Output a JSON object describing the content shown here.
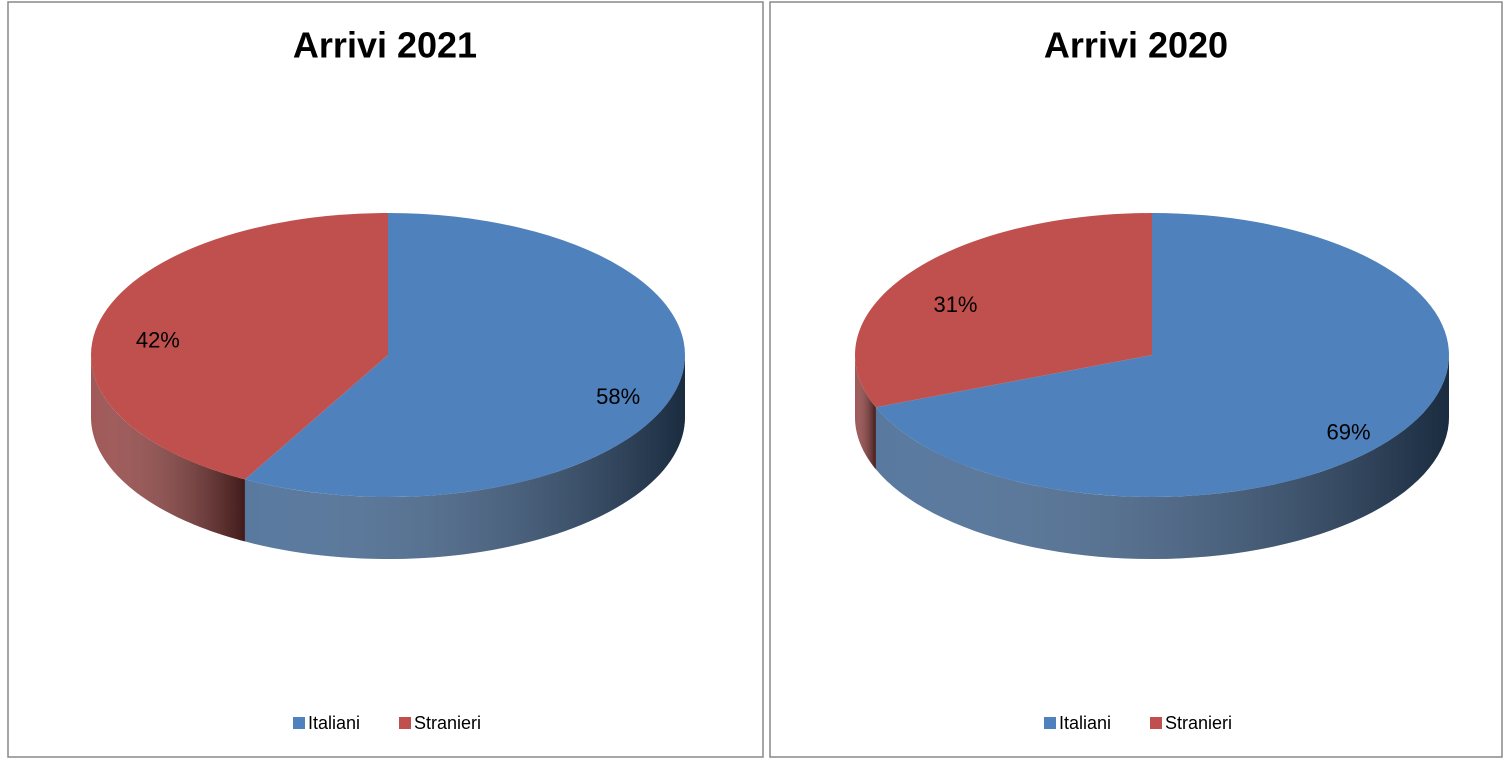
{
  "chart_data": [
    {
      "type": "pie",
      "title": "Arrivi 2021",
      "categories": [
        "Italiani",
        "Stranieri"
      ],
      "values": [
        58,
        42
      ],
      "value_labels": [
        "58%",
        "42%"
      ],
      "colors": [
        "#4f81bd",
        "#c0504d"
      ],
      "legend": "bottom"
    },
    {
      "type": "pie",
      "title": "Arrivi 2020",
      "categories": [
        "Italiani",
        "Stranieri"
      ],
      "values": [
        69,
        31
      ],
      "value_labels": [
        "69%",
        "31%"
      ],
      "colors": [
        "#4f81bd",
        "#c0504d"
      ],
      "legend": "bottom"
    }
  ]
}
